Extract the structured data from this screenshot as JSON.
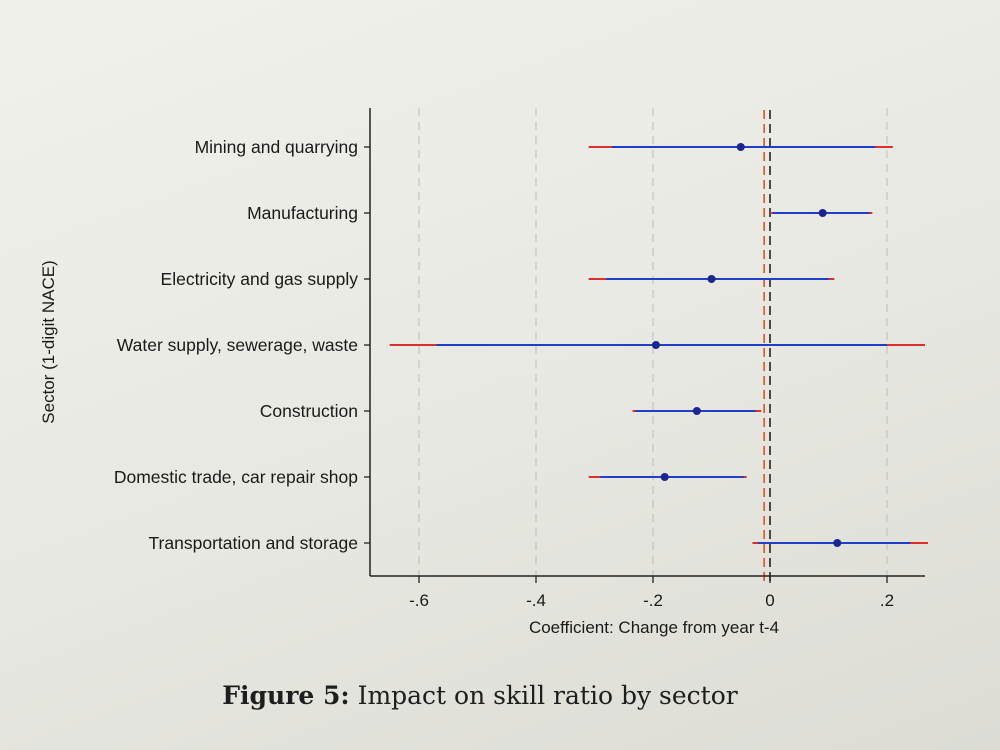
{
  "chart_data": {
    "type": "coefficient-plot",
    "ylabel": "Sector (1-digit NACE)",
    "xlabel": "Coefficient: Change from year t-4",
    "xticks": [
      -0.6,
      -0.4,
      -0.2,
      0,
      0.2
    ],
    "xtick_labels": [
      "-.6",
      "-.4",
      "-.2",
      "0",
      ".2"
    ],
    "xlim": [
      -0.68,
      0.27
    ],
    "grid": "vertical dashed at ticks",
    "reference_lines": [
      {
        "x": 0,
        "style": "dashed",
        "color": "#222222"
      },
      {
        "x": -0.01,
        "style": "dashed",
        "color": "#e0502a"
      }
    ],
    "sectors": [
      {
        "name": "Mining and quarrying",
        "coef": -0.05,
        "ci90": [
          -0.27,
          0.18
        ],
        "ci95": [
          -0.31,
          0.21
        ]
      },
      {
        "name": "Manufacturing",
        "coef": 0.09,
        "ci90": [
          0.005,
          0.17
        ],
        "ci95": [
          0.0,
          0.175
        ]
      },
      {
        "name": "Electricity and gas supply",
        "coef": -0.1,
        "ci90": [
          -0.28,
          0.1
        ],
        "ci95": [
          -0.31,
          0.11
        ]
      },
      {
        "name": "Water supply, sewerage, waste",
        "coef": -0.195,
        "ci90": [
          -0.57,
          0.2
        ],
        "ci95": [
          -0.65,
          0.265
        ]
      },
      {
        "name": "Construction",
        "coef": -0.125,
        "ci90": [
          -0.23,
          -0.025
        ],
        "ci95": [
          -0.235,
          -0.015
        ]
      },
      {
        "name": "Domestic trade, car repair shop",
        "coef": -0.18,
        "ci90": [
          -0.29,
          -0.045
        ],
        "ci95": [
          -0.31,
          -0.04
        ]
      },
      {
        "name": "Transportation and storage",
        "coef": 0.115,
        "ci90": [
          -0.02,
          0.24
        ],
        "ci95": [
          -0.03,
          0.27
        ]
      }
    ],
    "colors": {
      "ci90": "#1f3fc8",
      "ci95": "#d8302a",
      "point": "#1b2790"
    }
  },
  "caption": {
    "label": "Figure 5:",
    "text": "Impact on skill ratio by sector"
  }
}
